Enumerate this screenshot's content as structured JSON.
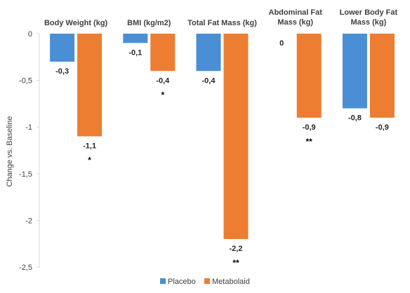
{
  "chart_data": {
    "type": "bar",
    "categories": [
      [
        "Body Weight (kg)"
      ],
      [
        "BMI (kg/m2)"
      ],
      [
        "Total Fat Mass (kg)"
      ],
      [
        "Abdominal Fat",
        "Mass (kg)"
      ],
      [
        "Lower Body Fat",
        "Mass (kg)"
      ]
    ],
    "series": [
      {
        "name": "Placebo",
        "color": "#4A8FD6",
        "values": [
          -0.3,
          -0.1,
          -0.4,
          0,
          -0.8
        ],
        "labels": [
          "-0,3",
          "-0,1",
          "-0,4",
          "0",
          "-0,8"
        ]
      },
      {
        "name": "Metabolaid",
        "color": "#ED7D31",
        "values": [
          -1.1,
          -0.4,
          -2.2,
          -0.9,
          -0.9
        ],
        "labels": [
          "-1,1",
          "-0,4",
          "-2,2",
          "-0,9",
          "-0,9"
        ]
      }
    ],
    "significance": [
      "*",
      "*",
      "**",
      "**",
      ""
    ],
    "ylabel": "Change vs. Baseline",
    "ylim": [
      -2.5,
      0
    ],
    "yticks": [
      0,
      -0.5,
      -1,
      -1.5,
      -2,
      -2.5
    ],
    "ytick_labels": [
      "0",
      "-0,5",
      "-1",
      "-1,5",
      "-2",
      "-2,5"
    ],
    "gridlines": false,
    "legend_position": "bottom"
  }
}
